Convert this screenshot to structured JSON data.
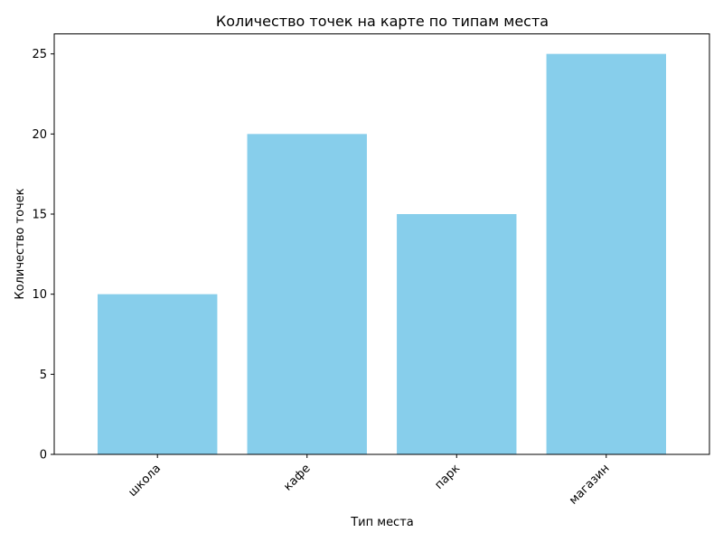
{
  "chart_data": {
    "type": "bar",
    "title": "Количество точек на карте по типам места",
    "xlabel": "Тип места",
    "ylabel": "Количество точек",
    "categories": [
      "школа",
      "кафе",
      "парк",
      "магазин"
    ],
    "values": [
      10,
      20,
      15,
      25
    ],
    "ylim": [
      0,
      26.25
    ],
    "yticks": [
      0,
      5,
      10,
      15,
      20,
      25
    ],
    "bar_color": "#87CEEB",
    "grid": false,
    "legend": "none",
    "xtick_rotation": 45
  }
}
